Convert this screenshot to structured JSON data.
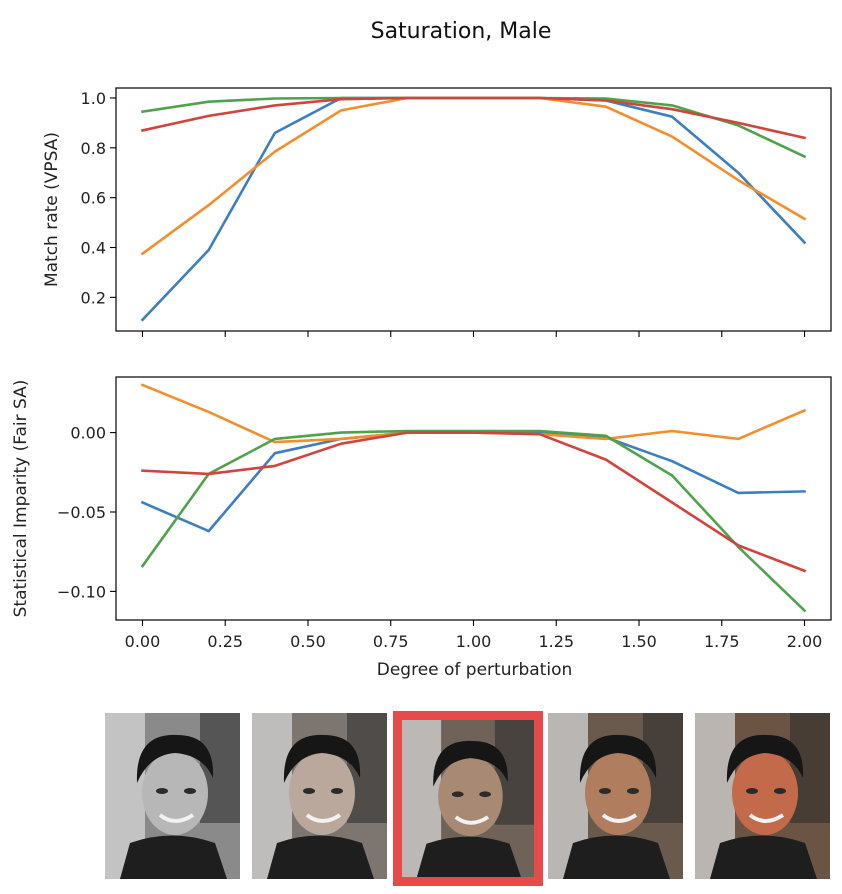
{
  "figure": {
    "title": "Saturation, Male"
  },
  "chart_data": [
    {
      "type": "line",
      "title": "",
      "xlabel": "",
      "ylabel": "Match rate (VPSA)",
      "x": [
        0.0,
        0.2,
        0.4,
        0.6,
        0.8,
        1.0,
        1.2,
        1.4,
        1.6,
        1.8,
        2.0
      ],
      "xlim": [
        -0.08,
        2.08
      ],
      "ylim": [
        0.065,
        1.04
      ],
      "yticks": [
        0.2,
        0.4,
        0.6,
        0.8,
        1.0
      ],
      "ytick_labels": [
        "0.2",
        "0.4",
        "0.6",
        "0.8",
        "1.0"
      ],
      "xticks": [
        0.0,
        0.25,
        0.5,
        0.75,
        1.0,
        1.25,
        1.5,
        1.75,
        2.0
      ],
      "show_xtick_labels": false,
      "grid": false,
      "legend": "none",
      "series": [
        {
          "color": "#3d7ebf",
          "values": [
            0.11,
            0.39,
            0.86,
            1.0,
            1.0,
            1.0,
            1.0,
            0.99,
            0.925,
            0.7,
            0.42
          ]
        },
        {
          "color": "#f28e2b",
          "values": [
            0.375,
            0.57,
            0.785,
            0.95,
            1.0,
            1.0,
            1.0,
            0.965,
            0.845,
            0.67,
            0.515
          ]
        },
        {
          "color": "#4ea34a",
          "values": [
            0.945,
            0.985,
            0.998,
            1.0,
            1.0,
            1.0,
            1.0,
            0.998,
            0.97,
            0.89,
            0.765
          ]
        },
        {
          "color": "#d1443d",
          "values": [
            0.87,
            0.928,
            0.97,
            0.995,
            1.0,
            1.0,
            1.0,
            0.99,
            0.955,
            0.9,
            0.84
          ]
        }
      ]
    },
    {
      "type": "line",
      "title": "",
      "xlabel": "Degree of perturbation",
      "ylabel": "Statistical Imparity (Fair SA)",
      "x": [
        0.0,
        0.2,
        0.4,
        0.6,
        0.8,
        1.0,
        1.2,
        1.4,
        1.6,
        1.8,
        2.0
      ],
      "xlim": [
        -0.08,
        2.08
      ],
      "ylim": [
        -0.118,
        0.035
      ],
      "yticks": [
        0.0,
        -0.05,
        -0.1
      ],
      "ytick_labels": [
        "0.00",
        "−0.05",
        "−0.10"
      ],
      "xticks": [
        0.0,
        0.25,
        0.5,
        0.75,
        1.0,
        1.25,
        1.5,
        1.75,
        2.0
      ],
      "xtick_labels": [
        "0.00",
        "0.25",
        "0.50",
        "0.75",
        "1.00",
        "1.25",
        "1.50",
        "1.75",
        "2.00"
      ],
      "show_xtick_labels": true,
      "grid": false,
      "legend": "none",
      "series": [
        {
          "color": "#3d7ebf",
          "values": [
            -0.044,
            -0.062,
            -0.013,
            -0.004,
            0.0,
            0.0,
            0.0,
            -0.003,
            -0.018,
            -0.038,
            -0.037
          ]
        },
        {
          "color": "#f28e2b",
          "values": [
            0.03,
            0.013,
            -0.006,
            -0.004,
            0.0,
            0.0,
            -0.001,
            -0.004,
            0.001,
            -0.004,
            0.014
          ]
        },
        {
          "color": "#4ea34a",
          "values": [
            -0.084,
            -0.026,
            -0.004,
            0.0,
            0.001,
            0.001,
            0.001,
            -0.002,
            -0.027,
            -0.072,
            -0.112
          ]
        },
        {
          "color": "#d1443d",
          "values": [
            -0.024,
            -0.026,
            -0.021,
            -0.007,
            0.0,
            0.0,
            -0.001,
            -0.017,
            -0.044,
            -0.071,
            -0.087
          ]
        }
      ]
    }
  ],
  "thumbnails": [
    {
      "name": "saturation-0",
      "tint": "#8a8a8a",
      "skin": "#b7b7b7",
      "selected": false
    },
    {
      "name": "saturation-0.5",
      "tint": "#7d7670",
      "skin": "#b9a89b",
      "selected": false
    },
    {
      "name": "saturation-1.0",
      "tint": "#6e6259",
      "skin": "#a88a74",
      "selected": true
    },
    {
      "name": "saturation-1.5",
      "tint": "#6a5a4d",
      "skin": "#b07e5e",
      "selected": false
    },
    {
      "name": "saturation-2.0",
      "tint": "#6b5444",
      "skin": "#c26a49",
      "selected": false
    }
  ]
}
